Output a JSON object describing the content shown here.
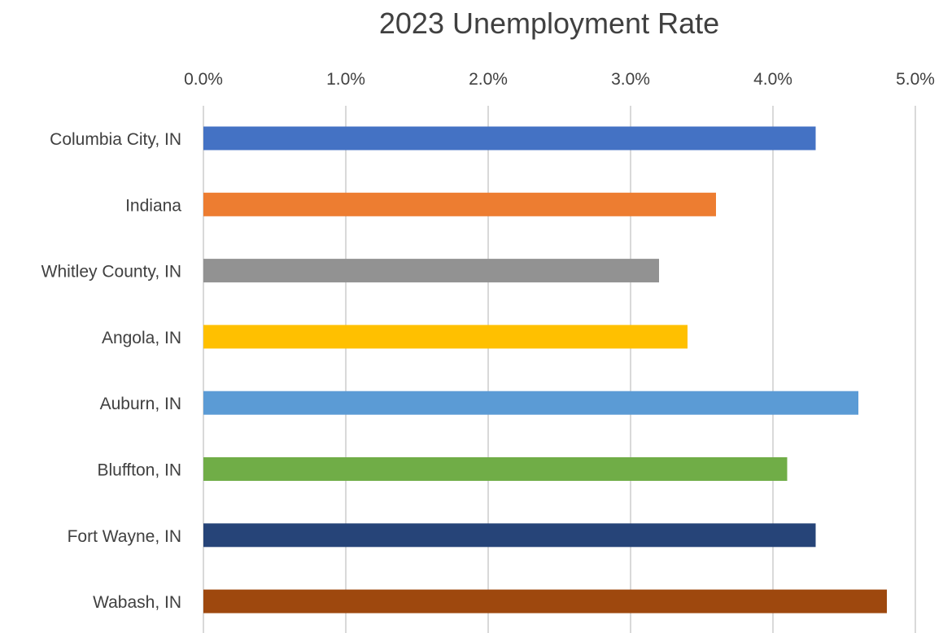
{
  "chart_data": {
    "type": "bar",
    "orientation": "horizontal",
    "title": "2023 Unemployment Rate",
    "xlabel": "",
    "ylabel": "",
    "xlim": [
      0,
      5
    ],
    "tick_values": [
      0,
      1,
      2,
      3,
      4,
      5
    ],
    "tick_labels": [
      "0.0%",
      "1.0%",
      "2.0%",
      "3.0%",
      "4.0%",
      "5.0%"
    ],
    "axis_position": "top",
    "grid": true,
    "legend": "none",
    "categories": [
      "Columbia City, IN",
      "Indiana",
      "Whitley County, IN",
      "Angola, IN",
      "Auburn, IN",
      "Bluffton, IN",
      "Fort Wayne, IN",
      "Wabash, IN"
    ],
    "values": [
      4.3,
      3.6,
      3.2,
      3.4,
      4.6,
      4.1,
      4.3,
      4.8
    ],
    "unit": "%",
    "colors": [
      "#4472C4",
      "#ED7D31",
      "#929292",
      "#FFC000",
      "#5B9BD5",
      "#70AD47",
      "#264478",
      "#9E480E"
    ],
    "grid_color": "#D9D9D9",
    "text_color": "#404040"
  }
}
